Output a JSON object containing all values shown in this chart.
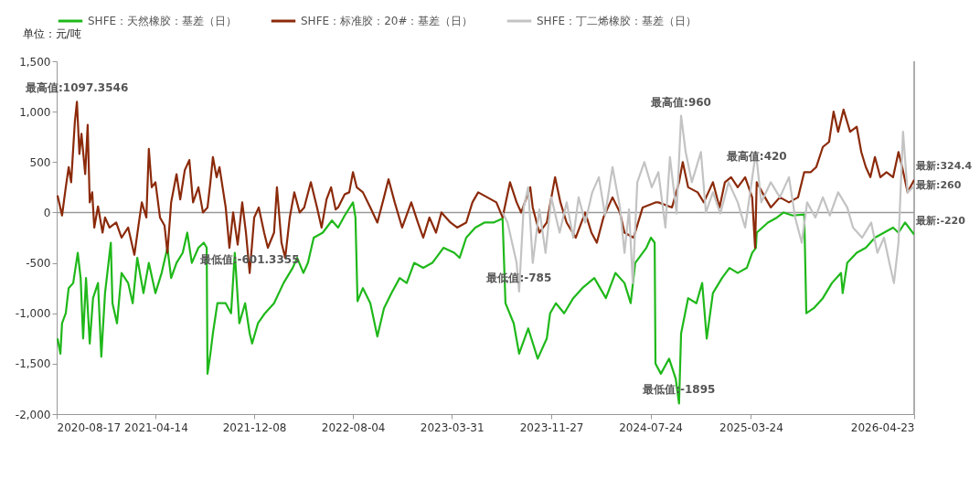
{
  "chart_data": {
    "type": "line",
    "ylabel": "单位：元/吨",
    "legend": "top",
    "line_style": "solid",
    "xlim": [
      "2020-08-17",
      "2026-04-23"
    ],
    "xticks": [
      "2020-08-17",
      "2021-04-14",
      "2021-12-08",
      "2022-08-04",
      "2023-03-31",
      "2023-11-27",
      "2024-07-24",
      "2025-03-24",
      "2026-04-23"
    ],
    "ylim": [
      -2000,
      1500
    ],
    "yticks": [
      {
        "value": -2000,
        "label": "-2,000"
      },
      {
        "value": -1500,
        "label": "-1,500"
      },
      {
        "value": -1000,
        "label": "-1,000"
      },
      {
        "value": -500,
        "label": "-500"
      },
      {
        "value": 0,
        "label": "0"
      },
      {
        "value": 500,
        "label": "500"
      },
      {
        "value": 1000,
        "label": "1,000"
      },
      {
        "value": 1500,
        "label": "1,500"
      }
    ],
    "ref_lines": [
      {
        "axis": "y",
        "value": 0,
        "color": "#999999"
      },
      {
        "axis": "x",
        "value": "2026-04-23",
        "color": "#8a8a8a"
      }
    ],
    "annotations": [
      {
        "text": "最高值:1097.3546",
        "x": "2020-10-05",
        "y": 1097.3546
      },
      {
        "text": "最低值:-601.3355",
        "x": "2021-11-27",
        "y": -601.3355
      },
      {
        "text": "最高值:960",
        "x": "2024-10-06",
        "y": 960
      },
      {
        "text": "最低值:-785",
        "x": "2023-09-10",
        "y": -785
      },
      {
        "text": "最高值:420",
        "x": "2025-04-07",
        "y": 420
      },
      {
        "text": "最低值:-1895",
        "x": "2024-10-01",
        "y": -1895
      },
      {
        "text": "最新:324.4",
        "x": "2026-04-23",
        "y": 324.4
      },
      {
        "text": "最新:260",
        "x": "2026-04-23",
        "y": 260
      },
      {
        "text": "最新:-220",
        "x": "2026-04-23",
        "y": -220
      }
    ],
    "series": [
      {
        "name": "SHFE：天然橡胶：基差（日）",
        "color": "#1fb81a",
        "x": [
          "2020-08-19",
          "2020-08-26",
          "2020-08-30",
          "2020-09-08",
          "2020-09-15",
          "2020-09-26",
          "2020-10-07",
          "2020-10-14",
          "2020-10-20",
          "2020-10-27",
          "2020-11-05",
          "2020-11-13",
          "2020-11-25",
          "2020-12-03",
          "2020-12-12",
          "2020-12-26",
          "2020-12-30",
          "2021-01-10",
          "2021-01-21",
          "2021-02-06",
          "2021-02-17",
          "2021-02-28",
          "2021-03-15",
          "2021-03-28",
          "2021-04-13",
          "2021-04-28",
          "2021-05-12",
          "2021-05-21",
          "2021-06-03",
          "2021-06-18",
          "2021-06-29",
          "2021-07-10",
          "2021-07-26",
          "2021-08-08",
          "2021-08-15",
          "2021-08-17",
          "2021-08-24",
          "2021-08-30",
          "2021-09-10",
          "2021-09-30",
          "2021-10-13",
          "2021-10-22",
          "2021-11-02",
          "2021-11-16",
          "2021-11-27",
          "2021-12-03",
          "2021-12-17",
          "2022-01-03",
          "2022-01-25",
          "2022-02-17",
          "2022-03-11",
          "2022-03-22",
          "2022-04-06",
          "2022-04-17",
          "2022-05-01",
          "2022-05-23",
          "2022-06-14",
          "2022-06-29",
          "2022-07-15",
          "2022-08-04",
          "2022-08-10",
          "2022-08-15",
          "2022-08-28",
          "2022-09-15",
          "2022-10-02",
          "2022-10-18",
          "2022-11-05",
          "2022-11-25",
          "2022-12-12",
          "2022-12-30",
          "2023-01-21",
          "2023-02-12",
          "2023-03-11",
          "2023-04-06",
          "2023-04-19",
          "2023-05-05",
          "2023-05-27",
          "2023-06-18",
          "2023-07-10",
          "2023-08-01",
          "2023-08-08",
          "2023-08-28",
          "2023-09-10",
          "2023-10-02",
          "2023-10-25",
          "2023-11-16",
          "2023-11-24",
          "2023-12-08",
          "2023-12-28",
          "2024-01-19",
          "2024-02-10",
          "2024-03-10",
          "2024-04-07",
          "2024-04-30",
          "2024-05-22",
          "2024-06-06",
          "2024-06-17",
          "2024-07-14",
          "2024-07-25",
          "2024-08-03",
          "2024-08-05",
          "2024-08-18",
          "2024-09-07",
          "2024-09-23",
          "2024-10-01",
          "2024-10-06",
          "2024-10-23",
          "2024-11-12",
          "2024-11-26",
          "2024-12-07",
          "2024-12-22",
          "2025-01-13",
          "2025-01-31",
          "2025-02-20",
          "2025-03-14",
          "2025-03-27",
          "2025-04-05",
          "2025-04-07",
          "2025-05-04",
          "2025-05-26",
          "2025-06-11",
          "2025-07-03",
          "2025-07-31",
          "2025-08-05",
          "2025-08-23",
          "2025-09-14",
          "2025-10-06",
          "2025-10-28",
          "2025-11-01",
          "2025-11-12",
          "2025-12-05",
          "2025-12-27",
          "2026-01-18",
          "2026-02-09",
          "2026-03-03",
          "2026-03-16",
          "2026-04-01",
          "2026-04-23"
        ],
        "values": [
          -1250,
          -1400,
          -1100,
          -1000,
          -750,
          -700,
          -400,
          -650,
          -1250,
          -650,
          -1300,
          -850,
          -700,
          -1430,
          -800,
          -300,
          -900,
          -1100,
          -600,
          -700,
          -900,
          -450,
          -800,
          -500,
          -800,
          -600,
          -350,
          -650,
          -500,
          -400,
          -200,
          -500,
          -350,
          -300,
          -350,
          -1600,
          -1400,
          -1200,
          -900,
          -900,
          -1000,
          -400,
          -1100,
          -900,
          -1200,
          -1300,
          -1100,
          -1000,
          -900,
          -700,
          -550,
          -450,
          -600,
          -500,
          -250,
          -200,
          -80,
          -150,
          -30,
          100,
          -50,
          -880,
          -750,
          -900,
          -1230,
          -950,
          -800,
          -650,
          -700,
          -500,
          -550,
          -500,
          -350,
          -400,
          -450,
          -250,
          -150,
          -100,
          -100,
          -60,
          -900,
          -1100,
          -1400,
          -1150,
          -1450,
          -1250,
          -1000,
          -900,
          -1000,
          -850,
          -750,
          -650,
          -850,
          -600,
          -700,
          -900,
          -500,
          -350,
          -250,
          -300,
          -1500,
          -1600,
          -1450,
          -1650,
          -1895,
          -1200,
          -850,
          -900,
          -700,
          -1250,
          -800,
          -650,
          -550,
          -600,
          -550,
          -400,
          -350,
          -200,
          -100,
          -50,
          0,
          -30,
          -20,
          -1000,
          -950,
          -850,
          -700,
          -600,
          -800,
          -500,
          -400,
          -350,
          -250,
          -200,
          -150,
          -200,
          -100,
          -220
        ]
      },
      {
        "name": "SHFE：标准胶：20#：基差（日）",
        "color": "#8b2a0a",
        "x": [
          "2020-08-19",
          "2020-08-30",
          "2020-09-08",
          "2020-09-15",
          "2020-09-21",
          "2020-09-30",
          "2020-10-05",
          "2020-10-11",
          "2020-10-16",
          "2020-10-25",
          "2020-10-31",
          "2020-11-05",
          "2020-11-11",
          "2020-11-16",
          "2020-11-25",
          "2020-12-06",
          "2020-12-12",
          "2020-12-23",
          "2021-01-08",
          "2021-01-21",
          "2021-02-06",
          "2021-02-21",
          "2021-03-04",
          "2021-03-11",
          "2021-03-22",
          "2021-03-28",
          "2021-04-04",
          "2021-04-13",
          "2021-04-24",
          "2021-05-05",
          "2021-05-12",
          "2021-05-21",
          "2021-06-03",
          "2021-06-12",
          "2021-06-23",
          "2021-07-04",
          "2021-07-13",
          "2021-07-26",
          "2021-08-06",
          "2021-08-17",
          "2021-08-24",
          "2021-08-30",
          "2021-09-08",
          "2021-09-15",
          "2021-09-30",
          "2021-10-09",
          "2021-10-18",
          "2021-10-29",
          "2021-11-09",
          "2021-11-18",
          "2021-11-27",
          "2021-12-08",
          "2021-12-19",
          "2022-01-01",
          "2022-01-10",
          "2022-01-25",
          "2022-02-01",
          "2022-02-12",
          "2022-02-21",
          "2022-03-04",
          "2022-03-15",
          "2022-03-28",
          "2022-04-08",
          "2022-04-24",
          "2022-05-09",
          "2022-05-20",
          "2022-06-01",
          "2022-06-12",
          "2022-06-23",
          "2022-06-29",
          "2022-07-15",
          "2022-07-26",
          "2022-08-04",
          "2022-08-13",
          "2022-08-28",
          "2022-09-15",
          "2022-10-02",
          "2022-10-18",
          "2022-10-29",
          "2022-11-13",
          "2022-12-01",
          "2022-12-23",
          "2023-01-08",
          "2023-01-21",
          "2023-02-05",
          "2023-02-21",
          "2023-03-06",
          "2023-03-28",
          "2023-04-13",
          "2023-05-05",
          "2023-05-20",
          "2023-06-03",
          "2023-06-25",
          "2023-07-17",
          "2023-08-01",
          "2023-08-19",
          "2023-09-04",
          "2023-09-15",
          "2023-10-07",
          "2023-10-13",
          "2023-10-29",
          "2023-11-16",
          "2023-12-06",
          "2023-12-19",
          "2024-01-03",
          "2024-01-25",
          "2024-02-17",
          "2024-03-03",
          "2024-03-16",
          "2024-04-01",
          "2024-04-23",
          "2024-05-11",
          "2024-05-22",
          "2024-06-13",
          "2024-07-05",
          "2024-08-05",
          "2024-08-12",
          "2024-09-14",
          "2024-10-01",
          "2024-10-10",
          "2024-10-23",
          "2024-11-15",
          "2024-11-30",
          "2024-12-22",
          "2025-01-07",
          "2025-01-20",
          "2025-02-04",
          "2025-02-20",
          "2025-03-10",
          "2025-03-27",
          "2025-04-03",
          "2025-04-07",
          "2025-04-27",
          "2025-05-11",
          "2025-06-02",
          "2025-06-24",
          "2025-07-16",
          "2025-07-31",
          "2025-08-16",
          "2025-08-29",
          "2025-09-14",
          "2025-09-29",
          "2025-10-10",
          "2025-10-21",
          "2025-11-03",
          "2025-11-19",
          "2025-12-05",
          "2025-12-16",
          "2025-12-27",
          "2026-01-07",
          "2026-01-18",
          "2026-01-31",
          "2026-02-15",
          "2026-03-03",
          "2026-03-16",
          "2026-03-25",
          "2026-04-07",
          "2026-04-23"
        ],
        "values": [
          170,
          -30,
          250,
          450,
          300,
          900,
          1097.3546,
          580,
          780,
          380,
          870,
          100,
          200,
          -150,
          60,
          -200,
          -50,
          -150,
          -100,
          -250,
          -150,
          -420,
          -100,
          100,
          -50,
          630,
          250,
          300,
          -50,
          -130,
          -400,
          100,
          380,
          130,
          420,
          520,
          100,
          250,
          0,
          50,
          300,
          550,
          350,
          450,
          50,
          -350,
          0,
          -320,
          100,
          -200,
          -601.3355,
          -50,
          50,
          -200,
          -350,
          -200,
          250,
          -300,
          -450,
          -50,
          200,
          0,
          50,
          300,
          50,
          -150,
          130,
          250,
          30,
          50,
          180,
          200,
          400,
          250,
          200,
          50,
          -100,
          150,
          330,
          100,
          -150,
          100,
          -100,
          -250,
          -50,
          -200,
          0,
          -100,
          -150,
          -100,
          100,
          200,
          150,
          100,
          -50,
          300,
          100,
          0,
          250,
          50,
          -200,
          -100,
          350,
          100,
          -100,
          -250,
          0,
          -200,
          -300,
          -50,
          150,
          0,
          -200,
          -250,
          50,
          100,
          100,
          50,
          300,
          500,
          250,
          200,
          100,
          300,
          50,
          300,
          350,
          250,
          350,
          150,
          -350,
          300,
          150,
          50,
          150,
          100,
          150,
          400,
          400,
          450,
          650,
          700,
          1000,
          800,
          1020,
          800,
          850,
          600,
          450,
          350,
          550,
          350,
          400,
          350,
          600,
          450,
          200,
          324.4
        ]
      },
      {
        "name": "SHFE：丁二烯橡胶：基差（日）",
        "color": "#c3c3c3",
        "x": [
          "2023-08-01",
          "2023-08-13",
          "2023-08-24",
          "2023-09-04",
          "2023-09-10",
          "2023-09-21",
          "2023-10-02",
          "2023-10-13",
          "2023-10-29",
          "2023-11-13",
          "2023-11-27",
          "2023-12-17",
          "2024-01-03",
          "2024-01-19",
          "2024-02-01",
          "2024-02-17",
          "2024-03-05",
          "2024-03-21",
          "2024-04-05",
          "2024-04-23",
          "2024-05-11",
          "2024-05-22",
          "2024-06-02",
          "2024-06-11",
          "2024-06-22",
          "2024-07-09",
          "2024-07-27",
          "2024-08-12",
          "2024-08-29",
          "2024-09-09",
          "2024-09-25",
          "2024-10-06",
          "2024-10-17",
          "2024-11-01",
          "2024-11-23",
          "2024-12-05",
          "2024-12-22",
          "2025-01-09",
          "2025-01-29",
          "2025-02-20",
          "2025-03-10",
          "2025-04-05",
          "2025-04-18",
          "2025-05-11",
          "2025-06-02",
          "2025-06-24",
          "2025-07-09",
          "2025-07-25",
          "2025-08-07",
          "2025-08-27",
          "2025-09-14",
          "2025-10-01",
          "2025-10-21",
          "2025-11-12",
          "2025-11-26",
          "2025-12-18",
          "2026-01-09",
          "2026-01-24",
          "2026-02-09",
          "2026-02-22",
          "2026-03-05",
          "2026-03-16",
          "2026-03-27",
          "2026-04-07",
          "2026-04-23"
        ],
        "values": [
          0,
          -100,
          -300,
          -500,
          -785,
          50,
          250,
          -500,
          30,
          -400,
          150,
          -200,
          100,
          -250,
          150,
          -100,
          200,
          350,
          -30,
          450,
          50,
          -400,
          30,
          -700,
          300,
          500,
          250,
          400,
          -150,
          550,
          -10,
          960,
          600,
          300,
          600,
          0,
          200,
          -10,
          300,
          100,
          -150,
          600,
          100,
          300,
          150,
          350,
          -50,
          -300,
          100,
          -50,
          150,
          -30,
          200,
          50,
          -150,
          -250,
          -100,
          -400,
          -250,
          -500,
          -700,
          -300,
          800,
          200,
          260
        ]
      }
    ]
  }
}
